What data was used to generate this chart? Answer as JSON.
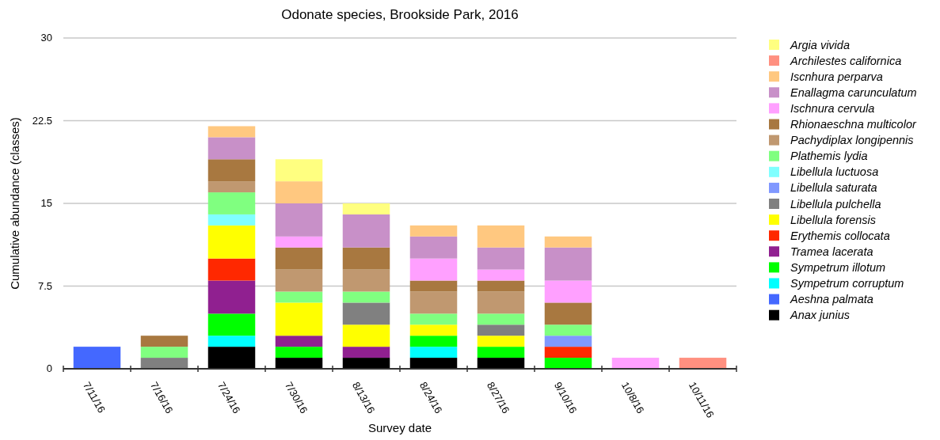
{
  "chart_data": {
    "type": "bar",
    "title": "Odonate species, Brookside Park, 2016",
    "xlabel": "Survey date",
    "ylabel": "Cumulative abundance (classes)",
    "stacked": true,
    "legend": "right",
    "grid": "y",
    "ylim": [
      0,
      30
    ],
    "yticks": [
      0,
      7.5,
      15,
      22.5,
      30
    ],
    "categories": [
      "7/11/16",
      "7/16/16",
      "7/24/16",
      "7/30/16",
      "8/13/16",
      "8/24/16",
      "8/27/16",
      "9/10/16",
      "10/8/16",
      "10/11/16"
    ],
    "series": [
      {
        "name": "Anax junius",
        "color": "#000000",
        "values": [
          0,
          0,
          2,
          1,
          1,
          1,
          1,
          0,
          0,
          0
        ]
      },
      {
        "name": "Aeshna palmata",
        "color": "#4468ff",
        "values": [
          2,
          0,
          0,
          0,
          0,
          0,
          0,
          0,
          0,
          0
        ]
      },
      {
        "name": "Sympetrum corruptum",
        "color": "#00ffff",
        "values": [
          0,
          0,
          1,
          0,
          0,
          1,
          0,
          0,
          0,
          0
        ]
      },
      {
        "name": "Sympetrum illotum",
        "color": "#00ff00",
        "values": [
          0,
          0,
          2,
          1,
          0,
          1,
          1,
          1,
          0,
          0
        ]
      },
      {
        "name": "Tramea lacerata",
        "color": "#902090",
        "values": [
          0,
          0,
          3,
          1,
          1,
          0,
          0,
          0,
          0,
          0
        ]
      },
      {
        "name": "Erythemis collocata",
        "color": "#ff2800",
        "values": [
          0,
          0,
          2,
          0,
          0,
          0,
          0,
          1,
          0,
          0
        ]
      },
      {
        "name": "Libellula forensis",
        "color": "#ffff00",
        "values": [
          0,
          0,
          3,
          3,
          2,
          1,
          1,
          0,
          0,
          0
        ]
      },
      {
        "name": "Libellula pulchella",
        "color": "#808080",
        "values": [
          0,
          1,
          0,
          0,
          2,
          0,
          1,
          0,
          0,
          0
        ]
      },
      {
        "name": "Libellula saturata",
        "color": "#8098ff",
        "values": [
          0,
          0,
          0,
          0,
          0,
          0,
          0,
          1,
          0,
          0
        ]
      },
      {
        "name": "Libellula luctuosa",
        "color": "#80ffff",
        "values": [
          0,
          0,
          1,
          0,
          0,
          0,
          0,
          0,
          0,
          0
        ]
      },
      {
        "name": "Plathemis lydia",
        "color": "#80ff80",
        "values": [
          0,
          1,
          2,
          1,
          1,
          1,
          1,
          1,
          0,
          0
        ]
      },
      {
        "name": "Pachydiplax longipennis",
        "color": "#c09870",
        "values": [
          0,
          0,
          1,
          2,
          2,
          2,
          2,
          0,
          0,
          0
        ]
      },
      {
        "name": "Rhionaeschna multicolor",
        "color": "#a87840",
        "values": [
          0,
          1,
          2,
          2,
          2,
          1,
          1,
          2,
          0,
          0
        ]
      },
      {
        "name": "Ischnura cervula",
        "color": "#ffa0ff",
        "values": [
          0,
          0,
          0,
          1,
          0,
          2,
          1,
          2,
          1,
          0
        ]
      },
      {
        "name": "Enallagma carunculatum",
        "color": "#c890c8",
        "values": [
          0,
          0,
          2,
          3,
          3,
          2,
          2,
          3,
          0,
          0
        ]
      },
      {
        "name": "Iscnhura perparva",
        "color": "#ffc880",
        "values": [
          0,
          0,
          1,
          2,
          0,
          1,
          2,
          1,
          0,
          0
        ]
      },
      {
        "name": "Archilestes californica",
        "color": "#ff9080",
        "values": [
          0,
          0,
          0,
          0,
          0,
          0,
          0,
          0,
          0,
          1
        ]
      },
      {
        "name": "Argia vivida",
        "color": "#ffff80",
        "values": [
          0,
          0,
          0,
          2,
          1,
          0,
          0,
          0,
          0,
          0
        ]
      }
    ]
  }
}
